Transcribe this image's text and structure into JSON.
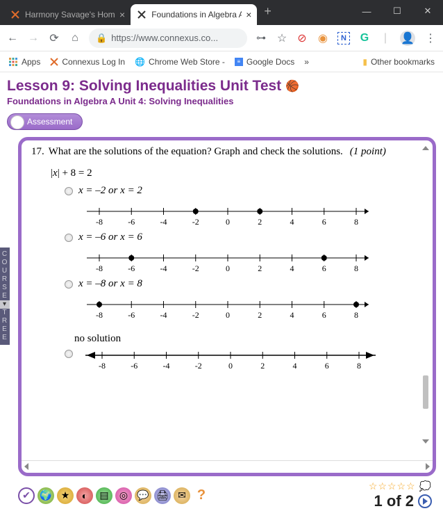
{
  "titlebar": {
    "tabs": [
      {
        "title": "Harmony Savage's Home",
        "active": false
      },
      {
        "title": "Foundations in Algebra A",
        "active": true
      }
    ]
  },
  "address": {
    "url": "https://www.connexus.co..."
  },
  "bookmarks": {
    "items": [
      "Apps",
      "Connexus Log In",
      "Chrome Web Store -",
      "Google Docs"
    ],
    "more": "»",
    "other": "Other bookmarks"
  },
  "lesson": {
    "title": "Lesson 9: Solving Inequalities Unit Test",
    "subtitle": "Foundations in Algebra A  Unit 4: Solving Inequalities",
    "pill": "Assessment"
  },
  "sidelabel": {
    "top": "COURSE",
    "bottom": "TREE"
  },
  "question": {
    "number": "17.",
    "text": "What are the solutions of the equation? Graph and check the solutions.",
    "points": "(1 point)",
    "equation": "|x| + 8 = 2",
    "options": [
      {
        "label": "x = –2 or x = 2",
        "dots": [
          -2,
          2
        ]
      },
      {
        "label": "x = –6 or x = 6",
        "dots": [
          -6,
          6
        ]
      },
      {
        "label": "x = –8 or x = 8",
        "dots": [
          -8,
          8
        ]
      }
    ],
    "no_solution_label": "no solution",
    "numline": {
      "min": -8,
      "max": 8,
      "step": 2
    }
  },
  "footer": {
    "stars": "☆☆☆☆☆",
    "page_text": "1 of 2"
  }
}
